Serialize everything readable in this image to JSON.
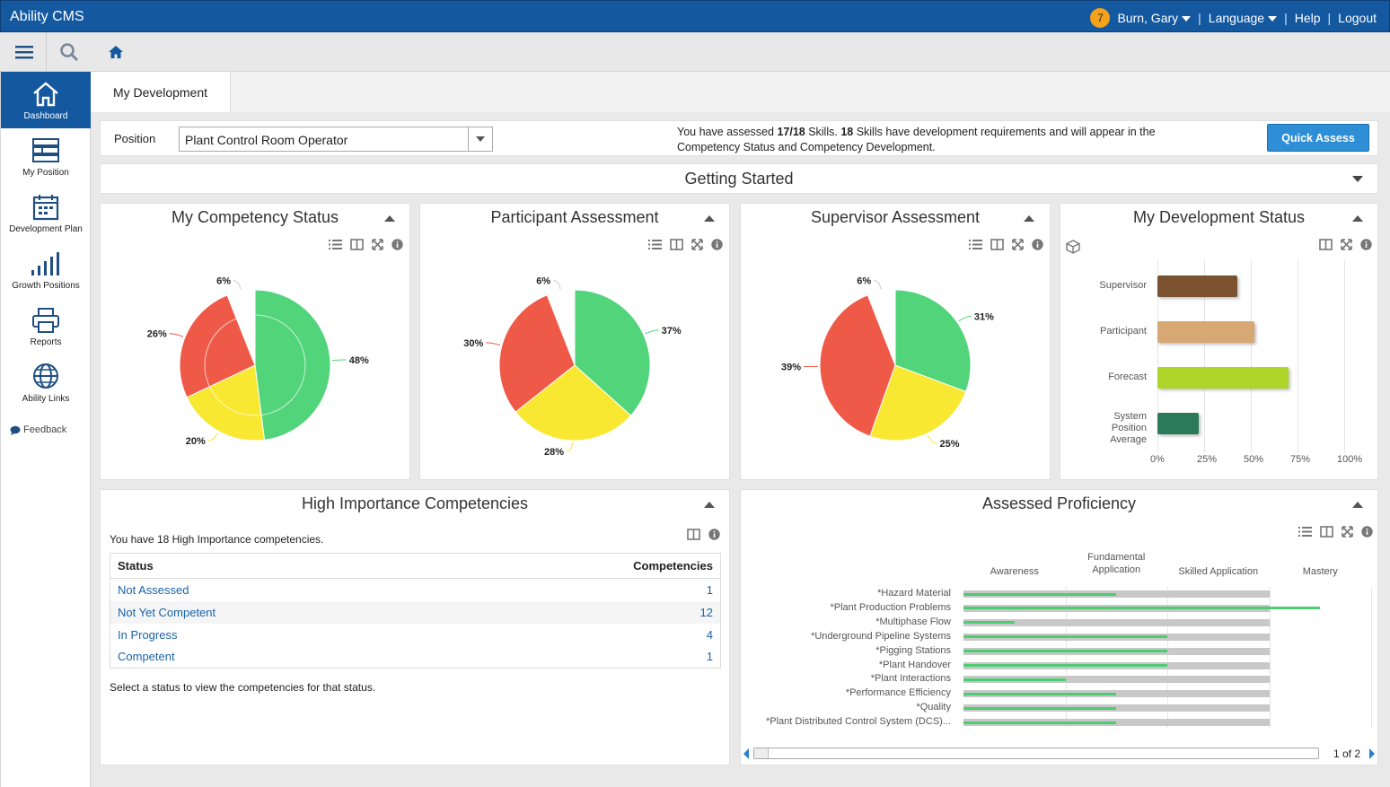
{
  "app": {
    "title": "Ability CMS"
  },
  "topnav": {
    "notification_count": "7",
    "user": "Burn, Gary",
    "language": "Language",
    "help": "Help",
    "logout": "Logout",
    "separator": "|"
  },
  "sidebar": {
    "items": [
      {
        "label": "Dashboard",
        "icon": "home-icon"
      },
      {
        "label": "My Position",
        "icon": "position-icon"
      },
      {
        "label": "Development Plan",
        "icon": "calendar-icon"
      },
      {
        "label": "Growth Positions",
        "icon": "bar-chart-icon"
      },
      {
        "label": "Reports",
        "icon": "printer-icon"
      },
      {
        "label": "Ability Links",
        "icon": "globe-icon"
      }
    ],
    "feedback": "Feedback"
  },
  "tabs": [
    {
      "label": "My Development"
    }
  ],
  "position": {
    "label": "Position",
    "value": "Plant Control Room Operator",
    "assessed": "17/18",
    "requirements": "18",
    "message_pre": "You have assessed ",
    "message_mid": " Skills. ",
    "message_post": " Skills have development requirements and will appear in the Competency Status and Competency Development.",
    "quick_assess": "Quick Assess"
  },
  "getting_started": {
    "title": "Getting Started"
  },
  "colors": {
    "green": "#51d47a",
    "yellow": "#f8e831",
    "red": "#ef5a48",
    "white": "#ffffff",
    "brand": "#1458a0",
    "supervisor": "#7a5230",
    "participant": "#d7a874",
    "forecast": "#aed62a",
    "system_avg": "#2b7a5a"
  },
  "competency_status": {
    "title": "My Competency Status",
    "slices": [
      {
        "label": "48%",
        "value": 48,
        "color": "#51d47a"
      },
      {
        "label": "20%",
        "value": 20,
        "color": "#f8e831"
      },
      {
        "label": "26%",
        "value": 26,
        "color": "#ef5a48"
      },
      {
        "label": "6%",
        "value": 6,
        "color": "#ffffff"
      }
    ]
  },
  "participant_assessment": {
    "title": "Participant Assessment",
    "slices": [
      {
        "label": "37%",
        "value": 37,
        "color": "#51d47a"
      },
      {
        "label": "28%",
        "value": 28,
        "color": "#f8e831"
      },
      {
        "label": "30%",
        "value": 30,
        "color": "#ef5a48"
      },
      {
        "label": "6%",
        "value": 6,
        "color": "#ffffff"
      }
    ]
  },
  "supervisor_assessment": {
    "title": "Supervisor Assessment",
    "slices": [
      {
        "label": "31%",
        "value": 31,
        "color": "#51d47a"
      },
      {
        "label": "25%",
        "value": 25,
        "color": "#f8e831"
      },
      {
        "label": "39%",
        "value": 39,
        "color": "#ef5a48"
      },
      {
        "label": "6%",
        "value": 6,
        "color": "#ffffff"
      }
    ]
  },
  "development_status": {
    "title": "My Development Status",
    "bars": [
      {
        "label": "Supervisor",
        "value": 43,
        "color": "#7a5230"
      },
      {
        "label": "Participant",
        "value": 52,
        "color": "#d7a874"
      },
      {
        "label": "Forecast",
        "value": 70,
        "color": "#aed62a"
      },
      {
        "label": "System Position Average",
        "value": 22,
        "color": "#2b7a5a"
      }
    ],
    "ticks": [
      "0%",
      "25%",
      "50%",
      "75%",
      "100%"
    ]
  },
  "high_importance": {
    "title": "High Importance Competencies",
    "intro": "You have 18 High Importance competencies.",
    "headers": {
      "status": "Status",
      "competencies": "Competencies"
    },
    "rows": [
      {
        "status": "Not Assessed",
        "count": "1"
      },
      {
        "status": "Not Yet Competent",
        "count": "12"
      },
      {
        "status": "In Progress",
        "count": "4"
      },
      {
        "status": "Competent",
        "count": "1"
      }
    ],
    "footer": "Select a status to view the competencies for that status."
  },
  "assessed_proficiency": {
    "title": "Assessed Proficiency",
    "levels": [
      "Awareness",
      "Fundamental Application",
      "Skilled Application",
      "Mastery"
    ],
    "items": [
      {
        "label": "*Hazard Material",
        "required": 3,
        "assessed": 1.5
      },
      {
        "label": "*Plant Production Problems",
        "required": 3,
        "assessed": 3.5
      },
      {
        "label": "*Multiphase Flow",
        "required": 3,
        "assessed": 0.5
      },
      {
        "label": "*Underground Pipeline Systems",
        "required": 3,
        "assessed": 2
      },
      {
        "label": "*Pigging Stations",
        "required": 3,
        "assessed": 2
      },
      {
        "label": "*Plant Handover",
        "required": 3,
        "assessed": 2
      },
      {
        "label": "*Plant Interactions",
        "required": 3,
        "assessed": 1
      },
      {
        "label": "*Performance Efficiency",
        "required": 3,
        "assessed": 1.5
      },
      {
        "label": "*Quality",
        "required": 3,
        "assessed": 1.5
      },
      {
        "label": "*Plant Distributed Control System (DCS)...",
        "required": 3,
        "assessed": 1.5
      }
    ],
    "pager": "1 of 2"
  }
}
